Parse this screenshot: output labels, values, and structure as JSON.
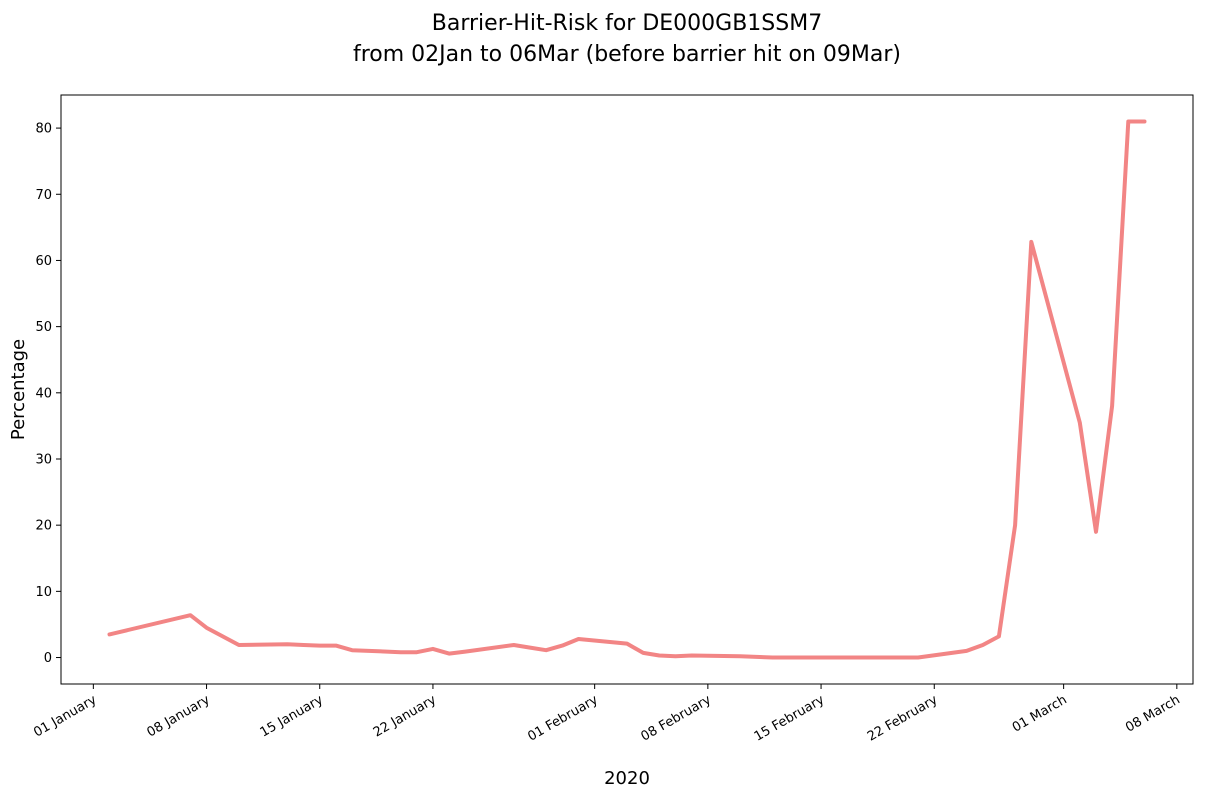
{
  "chart_data": {
    "type": "line",
    "title_lines": [
      "Barrier-Hit-Risk for DE000GB1SSM7",
      "from 02Jan to 06Mar (before barrier hit on 09Mar)"
    ],
    "xlabel": "2020",
    "ylabel": "Percentage",
    "xlim": [
      "2019-12-30",
      "2020-03-09"
    ],
    "ylim": [
      -4,
      85
    ],
    "x_ticks": [
      {
        "date": "2020-01-01",
        "label": "01 January"
      },
      {
        "date": "2020-01-08",
        "label": "08 January"
      },
      {
        "date": "2020-01-15",
        "label": "15 January"
      },
      {
        "date": "2020-01-22",
        "label": "22 January"
      },
      {
        "date": "2020-02-01",
        "label": "01 February"
      },
      {
        "date": "2020-02-08",
        "label": "08 February"
      },
      {
        "date": "2020-02-15",
        "label": "15 February"
      },
      {
        "date": "2020-02-22",
        "label": "22 February"
      },
      {
        "date": "2020-03-01",
        "label": "01 March"
      },
      {
        "date": "2020-03-08",
        "label": "08 March"
      }
    ],
    "y_ticks": [
      0,
      10,
      20,
      30,
      40,
      50,
      60,
      70,
      80
    ],
    "grid": false,
    "legend": null,
    "series": [
      {
        "color": "#f28585",
        "x": [
          "2020-01-02",
          "2020-01-07",
          "2020-01-08",
          "2020-01-09",
          "2020-01-10",
          "2020-01-13",
          "2020-01-14",
          "2020-01-15",
          "2020-01-16",
          "2020-01-17",
          "2020-01-20",
          "2020-01-21",
          "2020-01-22",
          "2020-01-23",
          "2020-01-24",
          "2020-01-27",
          "2020-01-28",
          "2020-01-29",
          "2020-01-30",
          "2020-01-31",
          "2020-02-03",
          "2020-02-04",
          "2020-02-05",
          "2020-02-06",
          "2020-02-07",
          "2020-02-10",
          "2020-02-11",
          "2020-02-12",
          "2020-02-13",
          "2020-02-14",
          "2020-02-17",
          "2020-02-18",
          "2020-02-19",
          "2020-02-20",
          "2020-02-21",
          "2020-02-24",
          "2020-02-25",
          "2020-02-26",
          "2020-02-27",
          "2020-02-28",
          "2020-03-02",
          "2020-03-03",
          "2020-03-04",
          "2020-03-05",
          "2020-03-06"
        ],
        "y": [
          3.5,
          6.4,
          4.5,
          3.2,
          1.9,
          2.0,
          1.9,
          1.8,
          1.8,
          1.1,
          0.8,
          0.8,
          1.3,
          0.6,
          0.9,
          1.9,
          1.5,
          1.1,
          1.8,
          2.8,
          2.1,
          0.7,
          0.3,
          0.2,
          0.3,
          0.2,
          0.1,
          0.0,
          0.0,
          0.0,
          0.0,
          0.0,
          0.0,
          0.0,
          0.0,
          1.0,
          1.9,
          3.2,
          20.0,
          62.8,
          35.5,
          19.0,
          38.0,
          81.0,
          81.0
        ]
      }
    ]
  }
}
